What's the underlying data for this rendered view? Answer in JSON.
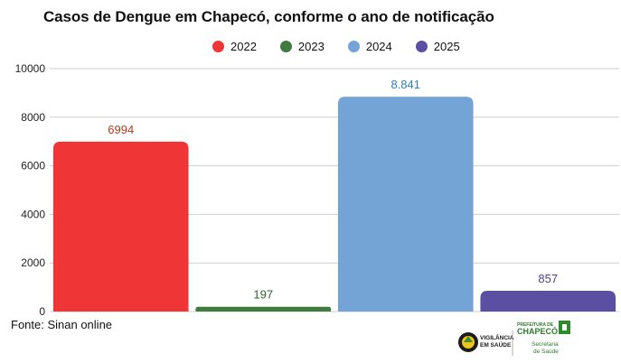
{
  "chart_data": {
    "type": "bar",
    "title": "Casos de Dengue em Chapecó, conforme o ano de notificação",
    "categories": [
      "2022",
      "2023",
      "2024",
      "2025"
    ],
    "values": [
      6994,
      197,
      8841,
      857
    ],
    "data_labels": [
      "6994",
      "197",
      "8.841",
      "857"
    ],
    "colors": [
      "#ef3535",
      "#3f7a3f",
      "#74a4d6",
      "#5a4fa2"
    ],
    "label_colors": [
      "#b23a1e",
      "#2f5f2f",
      "#2f7fb3",
      "#4a3f95"
    ],
    "ylim": [
      0,
      10000
    ],
    "yticks": [
      0,
      2000,
      4000,
      6000,
      8000,
      10000
    ],
    "grid": true,
    "legend_position": "top-center"
  },
  "legend": [
    {
      "label": "2022",
      "color": "#ef3535"
    },
    {
      "label": "2023",
      "color": "#3f7a3f"
    },
    {
      "label": "2024",
      "color": "#74a4d6"
    },
    {
      "label": "2025",
      "color": "#5a4fa2"
    }
  ],
  "footer": {
    "source": "Fonte: Sinan online",
    "logo1_line1": "VIGILÂNCIA",
    "logo1_line2": "EM SAÚDE",
    "logo2_line1": "PREFEITURA DE",
    "logo2_line2": "CHAPECÓ",
    "logo2_line3": "Secretaria",
    "logo2_line4": "de Saúde"
  }
}
